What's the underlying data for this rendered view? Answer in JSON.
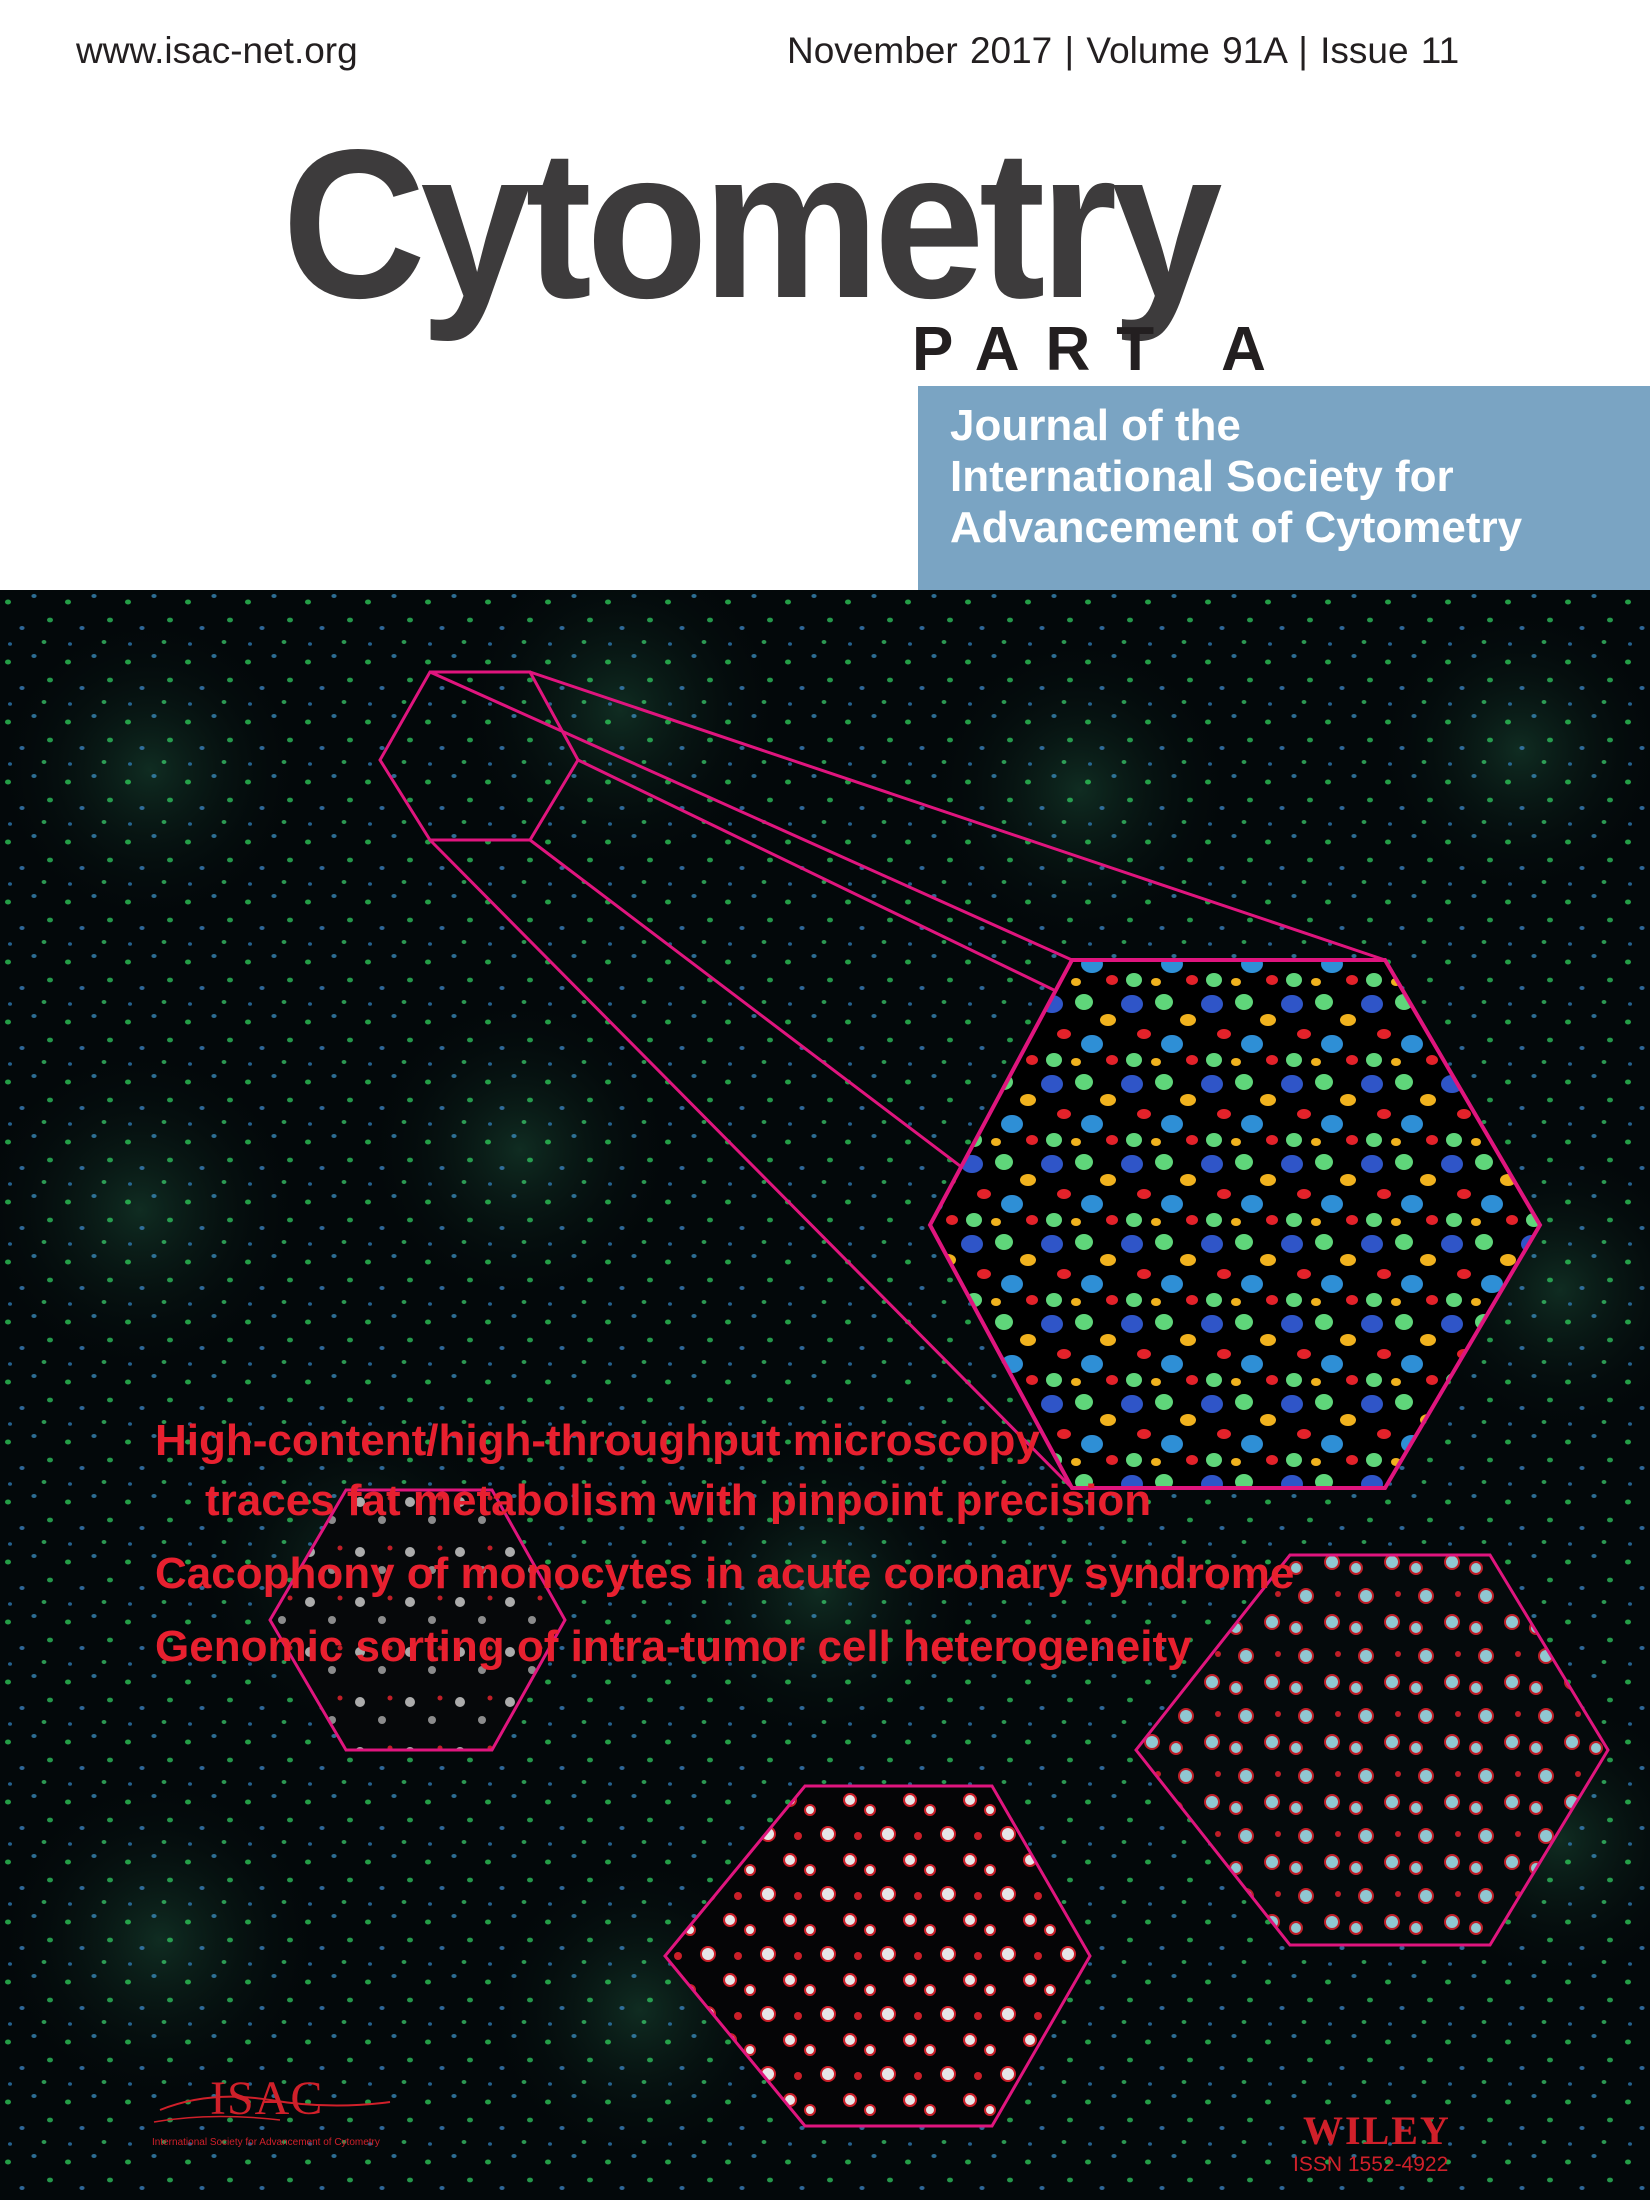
{
  "header": {
    "url": "www.isac-net.org",
    "issue_line": "November 2017  |  Volume 91A  |  Issue 11",
    "title": "Cytometry",
    "subtitle": "PART A",
    "tagline_lines": [
      "Journal of the",
      "International Society for",
      "Advancement of Cytometry"
    ]
  },
  "headlines": [
    "High-content/high-throughput microscopy",
    "traces fat metabolism with pinpoint precision",
    "Cacophony of monocytes in acute coronary syndrome",
    "Genomic sorting of intra-tumor cell heterogeneity"
  ],
  "footer": {
    "isac_logo_text": "ISAC",
    "isac_full_name": "International Society for Advancement of Cytometry",
    "publisher": "WILEY",
    "issn": "ISSN 1552-4922"
  },
  "colors": {
    "header_text": "#3d3b3c",
    "tagline_box": "#7aa4c3",
    "headline_red": "#e8202f",
    "hexagon_outline": "#e0157e",
    "background": "#03080a"
  },
  "icons": [
    "isac-logo-icon",
    "microscopy-hexagon-icon"
  ]
}
